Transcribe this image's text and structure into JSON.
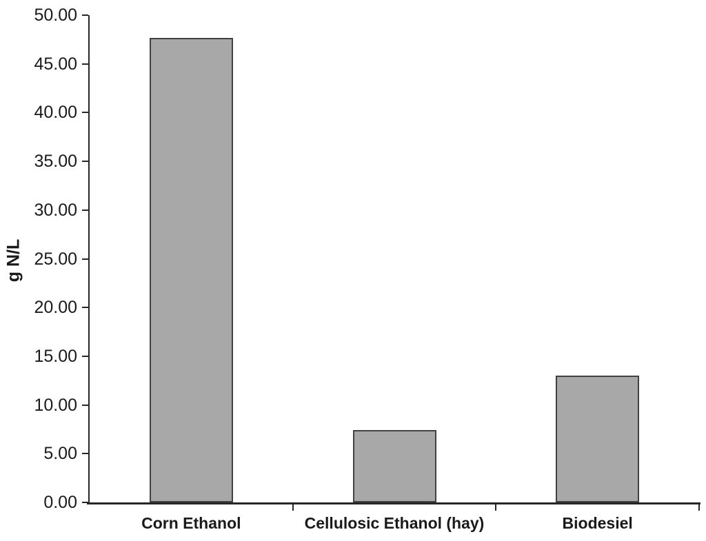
{
  "chart_data": {
    "type": "bar",
    "title": "",
    "xlabel": "",
    "ylabel": "g N/L",
    "categories": [
      "Corn Ethanol",
      "Cellulosic Ethanol (hay)",
      "Biodesiel"
    ],
    "values": [
      47.7,
      7.4,
      13.0
    ],
    "ylim": [
      0,
      50
    ],
    "ytick_step": 5,
    "ytick_labels": [
      "0.00",
      "5.00",
      "10.00",
      "15.00",
      "20.00",
      "25.00",
      "30.00",
      "35.00",
      "40.00",
      "45.00",
      "50.00"
    ],
    "grid": false,
    "legend_position": "none",
    "colors": {
      "bar_fill": "#a8a8a8",
      "bar_border": "#404040",
      "axis": "#262626",
      "text": "#1a1a1a",
      "background": "#ffffff"
    }
  }
}
